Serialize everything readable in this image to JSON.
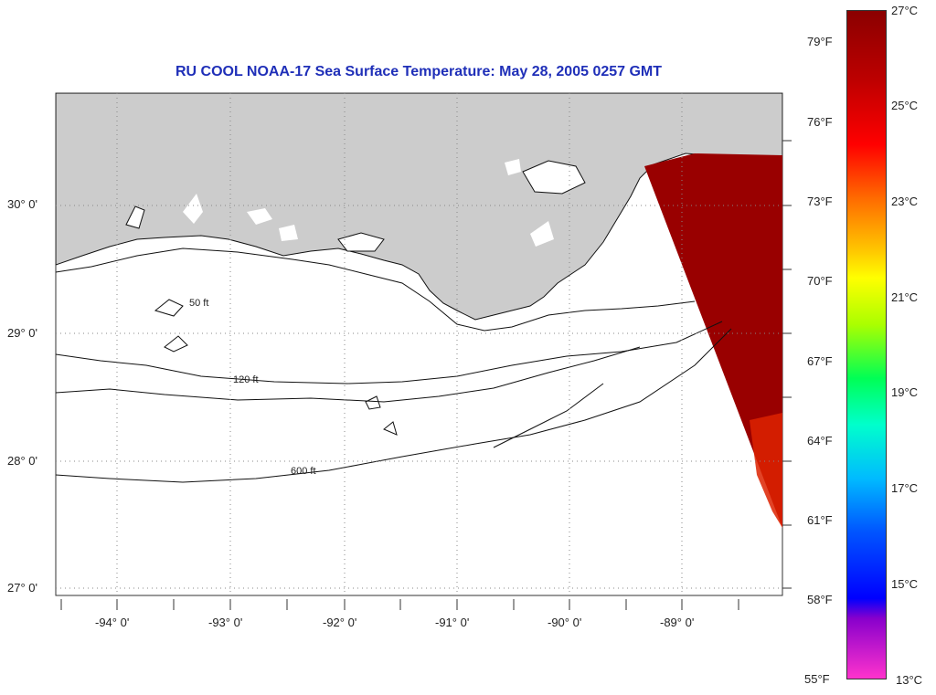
{
  "title": "RU COOL  NOAA-17  Sea Surface Temperature:  May 28, 2005 0257 GMT",
  "map": {
    "latitude_labels": [
      "30° 0'",
      "29° 0'",
      "28° 0'",
      "27° 0'"
    ],
    "longitude_labels": [
      "-94° 0'",
      "-93° 0'",
      "-92° 0'",
      "-91° 0'",
      "-90° 0'",
      "-89° 0'"
    ],
    "contour_labels": [
      "50 ft",
      "120 ft",
      "600 ft"
    ],
    "colors": {
      "land": "#cccccc",
      "water": "#ffffff",
      "sst_warm": "#990000",
      "sst_hot": "#dd2200",
      "grid": "#888888",
      "title": "#1f2fb8"
    }
  },
  "colorbar": {
    "fahrenheit_labels": [
      "79°F",
      "76°F",
      "73°F",
      "70°F",
      "67°F",
      "64°F",
      "61°F",
      "58°F",
      "55°F"
    ],
    "celsius_labels": [
      "27°C",
      "25°C",
      "23°C",
      "21°C",
      "19°C",
      "17°C",
      "15°C",
      "13°C"
    ]
  }
}
